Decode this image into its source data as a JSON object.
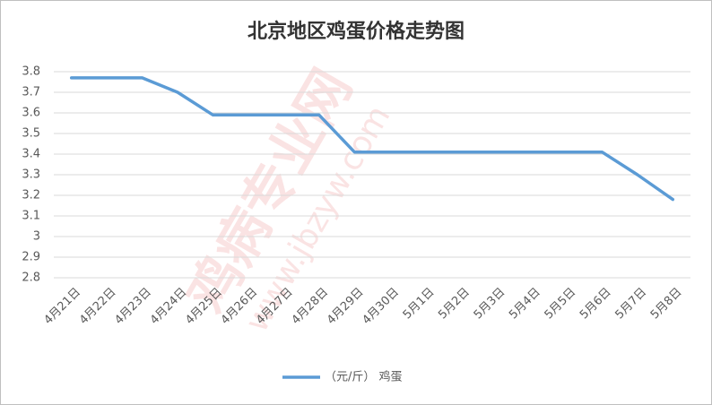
{
  "chart_data": {
    "type": "line",
    "title": "北京地区鸡蛋价格走势图",
    "watermark": "鸡病专业网",
    "watermark_url": "www.jbzyw.com",
    "categories": [
      "4月21日",
      "4月22日",
      "4月23日",
      "4月24日",
      "4月25日",
      "4月26日",
      "4月27日",
      "4月28日",
      "4月29日",
      "4月30日",
      "5月1日",
      "5月2日",
      "5月3日",
      "5月4日",
      "5月5日",
      "5月6日",
      "5月7日",
      "5月8日"
    ],
    "series": [
      {
        "name": "（元/斤） 鸡蛋",
        "color": "#5b9bd5",
        "values": [
          3.77,
          3.77,
          3.77,
          3.7,
          3.59,
          3.59,
          3.59,
          3.59,
          3.41,
          3.41,
          3.41,
          3.41,
          3.41,
          3.41,
          3.41,
          3.41,
          3.3,
          3.18
        ]
      }
    ],
    "ylim": [
      2.8,
      3.8
    ],
    "yticks": [
      2.8,
      2.9,
      3,
      3.1,
      3.2,
      3.3,
      3.4,
      3.5,
      3.6,
      3.7,
      3.8
    ],
    "grid": true,
    "legend": "bottom"
  }
}
